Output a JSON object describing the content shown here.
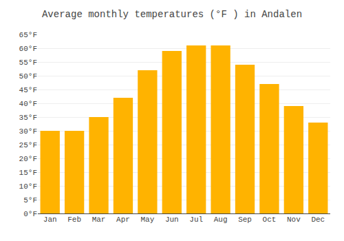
{
  "chart_data": {
    "type": "bar",
    "title": "Average monthly temperatures (°F ) in Andalen",
    "categories": [
      "Jan",
      "Feb",
      "Mar",
      "Apr",
      "May",
      "Jun",
      "Jul",
      "Aug",
      "Sep",
      "Oct",
      "Nov",
      "Dec"
    ],
    "values": [
      30,
      30,
      35,
      42,
      52,
      59,
      61,
      61,
      54,
      47,
      39,
      33
    ],
    "color": "#FFB300",
    "ylim": [
      0,
      65
    ],
    "yticks": [
      {
        "value": 0,
        "label": "0°F"
      },
      {
        "value": 5,
        "label": "5°F"
      },
      {
        "value": 10,
        "label": "10°F"
      },
      {
        "value": 15,
        "label": "15°F"
      },
      {
        "value": 20,
        "label": "20°F"
      },
      {
        "value": 25,
        "label": "25°F"
      },
      {
        "value": 30,
        "label": "30°F"
      },
      {
        "value": 35,
        "label": "35°F"
      },
      {
        "value": 40,
        "label": "40°F"
      },
      {
        "value": 45,
        "label": "45°F"
      },
      {
        "value": 50,
        "label": "50°F"
      },
      {
        "value": 55,
        "label": "55°F"
      },
      {
        "value": 60,
        "label": "60°F"
      },
      {
        "value": 65,
        "label": "65°F"
      }
    ],
    "grid": true
  }
}
